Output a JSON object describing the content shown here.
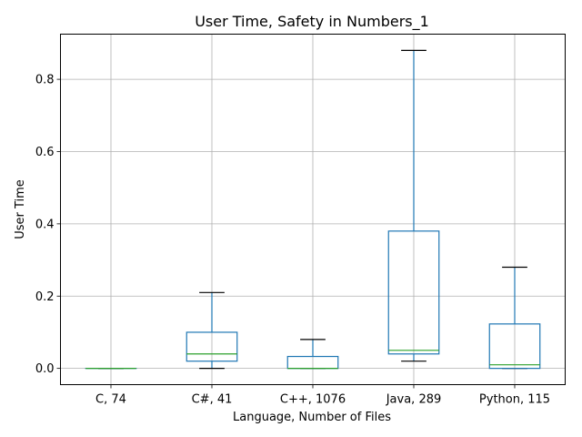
{
  "chart_data": {
    "type": "box",
    "title": "User Time, Safety in Numbers_1",
    "xlabel": "Language, Number of Files",
    "ylabel": "User Time",
    "ylim": [
      -0.045,
      0.925
    ],
    "yticks": [
      0.0,
      0.2,
      0.4,
      0.6,
      0.8
    ],
    "ytick_labels": [
      "0.0",
      "0.2",
      "0.4",
      "0.6",
      "0.8"
    ],
    "grid": true,
    "categories": [
      "C, 74",
      "C#, 41",
      "C++, 1076",
      "Java, 289",
      "Python, 115"
    ],
    "boxes": [
      {
        "whisker_low": 0.0,
        "q1": 0.0,
        "median": 0.0,
        "q3": 0.0,
        "whisker_high": 0.0
      },
      {
        "whisker_low": 0.0,
        "q1": 0.02,
        "median": 0.04,
        "q3": 0.1,
        "whisker_high": 0.21
      },
      {
        "whisker_low": 0.0,
        "q1": 0.0,
        "median": 0.0,
        "q3": 0.033,
        "whisker_high": 0.08
      },
      {
        "whisker_low": 0.02,
        "q1": 0.04,
        "median": 0.05,
        "q3": 0.38,
        "whisker_high": 0.88
      },
      {
        "whisker_low": 0.0,
        "q1": 0.0,
        "median": 0.01,
        "q3": 0.123,
        "whisker_high": 0.28
      }
    ],
    "colors": {
      "box": "#1f77b4",
      "median": "#2ca02c",
      "whisker_cap": "#000000",
      "grid": "#b0b0b0"
    }
  }
}
